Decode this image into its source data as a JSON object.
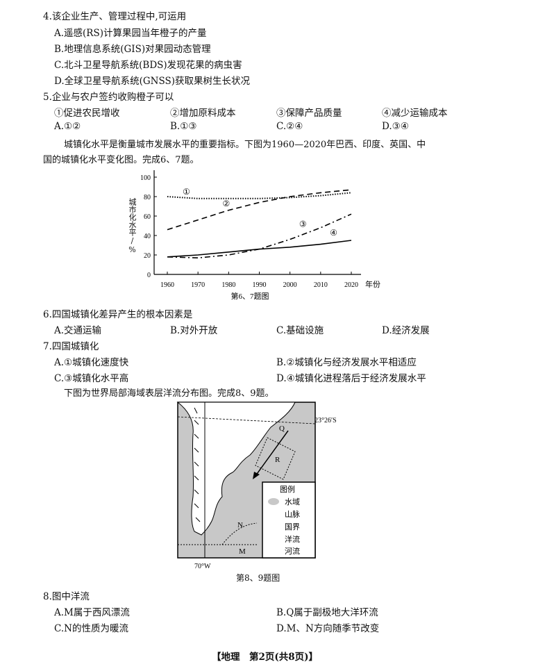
{
  "q4": {
    "stem": "4.该企业生产、管理过程中,可运用",
    "A": "A.遥感(RS)计算果园当年橙子的产量",
    "B": "B.地理信息系统(GIS)对果园动态管理",
    "C": "C.北斗卫星导航系统(BDS)发现花果的病虫害",
    "D": "D.全球卫星导航系统(GNSS)获取果树生长状况"
  },
  "q5": {
    "stem": "5.企业与农户签约收购橙子可以",
    "items": [
      "①促进农民增收",
      "②增加原料成本",
      "③保障产品质量",
      "④减少运输成本"
    ],
    "options": [
      "A.①②",
      "B.①③",
      "C.②④",
      "D.③④"
    ]
  },
  "intro67": [
    "城镇化水平是衡量城市发展水平的重要指标。下图为1960—2020年巴西、印度、英国、中",
    "国的城镇化水平变化图。完成6、7题。"
  ],
  "chart_data": {
    "type": "line",
    "ylabel": "城市化水平/%",
    "xlabel": "年份",
    "caption": "第6、7题图",
    "x": [
      1960,
      1970,
      1980,
      1990,
      2000,
      2010,
      2020
    ],
    "xticks": [
      "1960",
      "1970",
      "1980",
      "1990",
      "2000",
      "2010",
      "2020"
    ],
    "yticks": [
      "0",
      "20",
      "40",
      "60",
      "80",
      "100"
    ],
    "ylim": [
      0,
      100
    ],
    "series": [
      {
        "name": "①",
        "style": "dotted",
        "values": [
          80,
          78,
          78,
          78,
          79,
          81,
          84
        ]
      },
      {
        "name": "②",
        "style": "dashed",
        "values": [
          46,
          56,
          66,
          74,
          80,
          84,
          87
        ]
      },
      {
        "name": "③",
        "style": "dash-dot",
        "values": [
          18,
          17,
          20,
          26,
          36,
          48,
          62
        ]
      },
      {
        "name": "④",
        "style": "solid",
        "values": [
          18,
          20,
          23,
          26,
          28,
          31,
          35
        ]
      }
    ]
  },
  "q6": {
    "stem": "6.四国城镇化差异产生的根本因素是",
    "options": [
      "A.交通运输",
      "B.对外开放",
      "C.基础设施",
      "D.经济发展"
    ]
  },
  "q7": {
    "stem": "7.四国城镇化",
    "A": "A.①城镇化速度快",
    "B": "B.②城镇化与经济发展水平相适应",
    "C": "C.③城镇化水平高",
    "D": "D.④城镇化进程落后于经济发展水平"
  },
  "intro89": "下图为世界局部海域表层洋流分布图。完成8、9题。",
  "map": {
    "lat_label": "23°26′S",
    "lon_label": "70°W",
    "labels": [
      "Q",
      "R",
      "N",
      "M"
    ],
    "legend_title": "图例",
    "legend": [
      "水域",
      "山脉",
      "国界",
      "洋流",
      "河流"
    ],
    "caption": "第8、9题图",
    "water_color": "#c8c8c8"
  },
  "q8": {
    "stem": "8.图中洋流",
    "A": "A.M属于西风漂流",
    "B": "B.Q属于副极地大洋环流",
    "C": "C.N的性质为暖流",
    "D": "D.M、N方向随季节改变"
  },
  "footer": "【地理　第2页(共8页)】"
}
